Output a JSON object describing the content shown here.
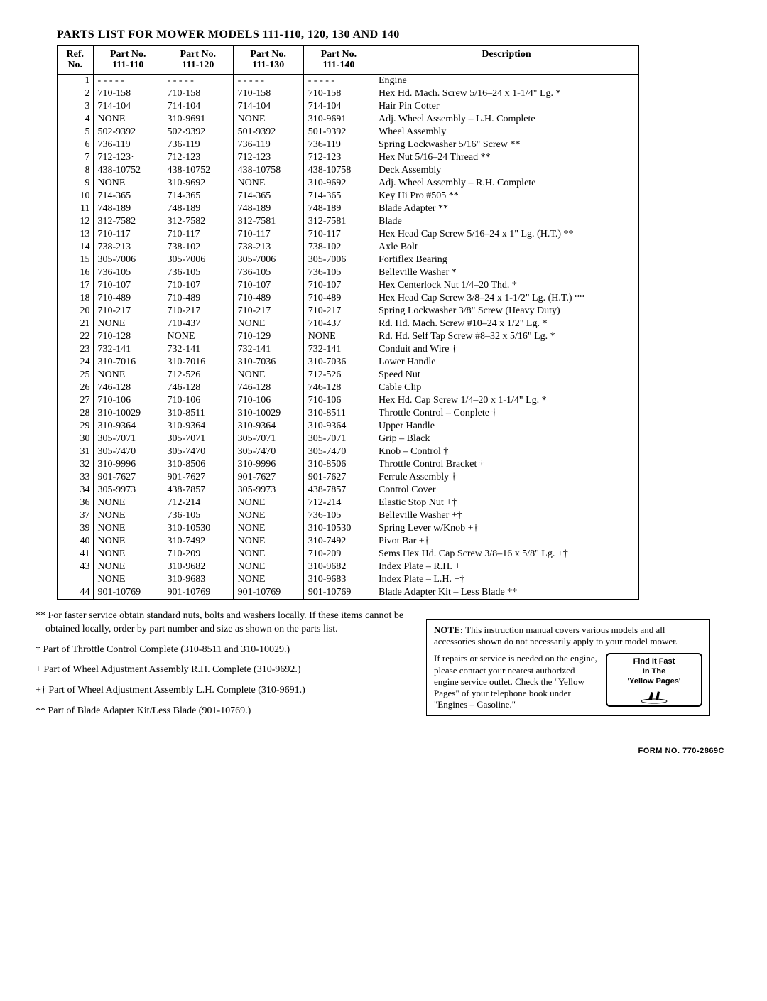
{
  "title": "PARTS LIST FOR MOWER MODELS 111-110, 120, 130 AND 140",
  "table": {
    "headers": {
      "ref": "Ref.\nNo.",
      "c110": "Part No.\n111-110",
      "c120": "Part No.\n111-120",
      "c130": "Part No.\n111-130",
      "c140": "Part No.\n111-140",
      "desc": "Description"
    },
    "rows": [
      {
        "ref": "1",
        "a": "- - - - -",
        "b": "- - - - -",
        "c": "- - - - -",
        "d": "- - - - -",
        "desc": "Engine"
      },
      {
        "ref": "2",
        "a": "710-158",
        "b": "710-158",
        "c": "710-158",
        "d": "710-158",
        "desc": "Hex Hd. Mach. Screw 5/16–24 x 1-1/4\" Lg. *"
      },
      {
        "ref": "3",
        "a": "714-104",
        "b": "714-104",
        "c": "714-104",
        "d": "714-104",
        "desc": "Hair Pin Cotter"
      },
      {
        "ref": "4",
        "a": "NONE",
        "b": "310-9691",
        "c": "NONE",
        "d": "310-9691",
        "desc": "Adj. Wheel Assembly – L.H. Complete"
      },
      {
        "ref": "5",
        "a": "502-9392",
        "b": "502-9392",
        "c": "501-9392",
        "d": "501-9392",
        "desc": "Wheel Assembly"
      },
      {
        "ref": "6",
        "a": "736-119",
        "b": "736-119",
        "c": "736-119",
        "d": "736-119",
        "desc": "Spring Lockwasher 5/16\" Screw **"
      },
      {
        "ref": "7",
        "a": "712-123·",
        "b": "712-123",
        "c": "712-123",
        "d": "712-123",
        "desc": "Hex Nut 5/16–24 Thread **"
      },
      {
        "ref": "8",
        "a": "438-10752",
        "b": "438-10752",
        "c": "438-10758",
        "d": "438-10758",
        "desc": "Deck Assembly"
      },
      {
        "ref": "9",
        "a": "NONE",
        "b": "310-9692",
        "c": "NONE",
        "d": "310-9692",
        "desc": "Adj. Wheel Assembly – R.H. Complete"
      },
      {
        "ref": "10",
        "a": "714-365",
        "b": "714-365",
        "c": "714-365",
        "d": "714-365",
        "desc": "Key Hi Pro #505 **"
      },
      {
        "ref": "11",
        "a": "748-189",
        "b": "748-189",
        "c": "748-189",
        "d": "748-189",
        "desc": "Blade Adapter **"
      },
      {
        "ref": "12",
        "a": "312-7582",
        "b": "312-7582",
        "c": "312-7581",
        "d": "312-7581",
        "desc": "Blade"
      },
      {
        "ref": "13",
        "a": "710-117",
        "b": "710-117",
        "c": "710-117",
        "d": "710-117",
        "desc": "Hex Head Cap Screw 5/16–24 x 1\" Lg. (H.T.) **"
      },
      {
        "ref": "14",
        "a": "738-213",
        "b": "738-102",
        "c": "738-213",
        "d": "738-102",
        "desc": "Axle Bolt"
      },
      {
        "ref": "15",
        "a": "305-7006",
        "b": "305-7006",
        "c": "305-7006",
        "d": "305-7006",
        "desc": "Fortiflex Bearing"
      },
      {
        "ref": "16",
        "a": "736-105",
        "b": "736-105",
        "c": "736-105",
        "d": "736-105",
        "desc": "Belleville Washer *"
      },
      {
        "ref": "17",
        "a": "710-107",
        "b": "710-107",
        "c": "710-107",
        "d": "710-107",
        "desc": "Hex Centerlock Nut 1/4–20 Thd. *"
      },
      {
        "ref": "18",
        "a": "710-489",
        "b": "710-489",
        "c": "710-489",
        "d": "710-489",
        "desc": "Hex Head Cap Screw 3/8–24 x 1-1/2\" Lg. (H.T.) **"
      },
      {
        "ref": "20",
        "a": "710-217",
        "b": "710-217",
        "c": "710-217",
        "d": "710-217",
        "desc": "Spring Lockwasher 3/8\" Screw (Heavy Duty)"
      },
      {
        "ref": "21",
        "a": "NONE",
        "b": "710-437",
        "c": "NONE",
        "d": "710-437",
        "desc": "Rd. Hd. Mach. Screw #10–24 x 1/2\" Lg. *"
      },
      {
        "ref": "22",
        "a": "710-128",
        "b": "NONE",
        "c": "710-129",
        "d": "NONE",
        "desc": "Rd. Hd. Self Tap Screw #8–32 x 5/16\" Lg. *"
      },
      {
        "ref": "23",
        "a": "732-141",
        "b": "732-141",
        "c": "732-141",
        "d": "732-141",
        "desc": "Conduit and Wire †"
      },
      {
        "ref": "24",
        "a": "310-7016",
        "b": "310-7016",
        "c": "310-7036",
        "d": "310-7036",
        "desc": "Lower Handle"
      },
      {
        "ref": "25",
        "a": "NONE",
        "b": "712-526",
        "c": "NONE",
        "d": "712-526",
        "desc": "Speed Nut"
      },
      {
        "ref": "26",
        "a": "746-128",
        "b": "746-128",
        "c": "746-128",
        "d": "746-128",
        "desc": "Cable Clip"
      },
      {
        "ref": "27",
        "a": "710-106",
        "b": "710-106",
        "c": "710-106",
        "d": "710-106",
        "desc": "Hex Hd. Cap Screw 1/4–20 x 1-1/4\" Lg. *"
      },
      {
        "ref": "28",
        "a": "310-10029",
        "b": "310-8511",
        "c": "310-10029",
        "d": "310-8511",
        "desc": "Throttle Control – Conplete †"
      },
      {
        "ref": "29",
        "a": "310-9364",
        "b": "310-9364",
        "c": "310-9364",
        "d": "310-9364",
        "desc": "Upper Handle"
      },
      {
        "ref": "30",
        "a": "305-7071",
        "b": "305-7071",
        "c": "305-7071",
        "d": "305-7071",
        "desc": "Grip – Black"
      },
      {
        "ref": "31",
        "a": "305-7470",
        "b": "305-7470",
        "c": "305-7470",
        "d": "305-7470",
        "desc": "Knob – Control †"
      },
      {
        "ref": "32",
        "a": "310-9996",
        "b": "310-8506",
        "c": "310-9996",
        "d": "310-8506",
        "desc": "Throttle Control Bracket †"
      },
      {
        "ref": "33",
        "a": "901-7627",
        "b": "901-7627",
        "c": "901-7627",
        "d": "901-7627",
        "desc": "Ferrule Assembly †"
      },
      {
        "ref": "34",
        "a": "305-9973",
        "b": "438-7857",
        "c": "305-9973",
        "d": "438-7857",
        "desc": "Control Cover"
      },
      {
        "ref": "36",
        "a": "NONE",
        "b": "712-214",
        "c": "NONE",
        "d": "712-214",
        "desc": "Elastic Stop Nut +†"
      },
      {
        "ref": "37",
        "a": "NONE",
        "b": "736-105",
        "c": "NONE",
        "d": "736-105",
        "desc": "Belleville Washer +†"
      },
      {
        "ref": "39",
        "a": "NONE",
        "b": "310-10530",
        "c": "NONE",
        "d": "310-10530",
        "desc": "Spring Lever w/Knob +†"
      },
      {
        "ref": "40",
        "a": "NONE",
        "b": "310-7492",
        "c": "NONE",
        "d": "310-7492",
        "desc": "Pivot Bar +†"
      },
      {
        "ref": "41",
        "a": "NONE",
        "b": "710-209",
        "c": "NONE",
        "d": "710-209",
        "desc": "Sems Hex Hd. Cap Screw 3/8–16 x 5/8\" Lg. +†"
      },
      {
        "ref": "43",
        "a": "NONE",
        "b": "310-9682",
        "c": "NONE",
        "d": "310-9682",
        "desc": "Index Plate – R.H. +"
      },
      {
        "ref": "",
        "a": "NONE",
        "b": "310-9683",
        "c": "NONE",
        "d": "310-9683",
        "desc": "Index Plate – L.H. +†"
      },
      {
        "ref": "44",
        "a": "901-10769",
        "b": "901-10769",
        "c": "901-10769",
        "d": "901-10769",
        "desc": "Blade Adapter Kit – Less Blade **"
      }
    ]
  },
  "footnotes": {
    "f1": "** For faster service obtain standard nuts, bolts and washers locally. If these items cannot be obtained locally, order by part number and size as shown on the parts list.",
    "f2": "† Part of Throttle Control Complete (310-8511 and 310-10029.)",
    "f3": "+ Part of Wheel Adjustment Assembly R.H. Complete (310-9692.)",
    "f4": "+† Part of Wheel Adjustment Assembly L.H. Complete (310-9691.)",
    "f5": "** Part of Blade Adapter Kit/Less Blade (901-10769.)"
  },
  "note_box": {
    "label": "NOTE:",
    "text1": "This instruction manual covers various models and all accessories shown do not necessarily apply to your model mower.",
    "text2": "If repairs or service is needed on the engine, please contact your nearest authorized engine service outlet. Check the \"Yellow Pages\" of your telephone book under \"Engines – Gasoline.\"",
    "find_it": "Find It Fast",
    "in_the": "In The",
    "yellow_pages": "'Yellow Pages'"
  },
  "form_no": "FORM NO. 770-2869C"
}
